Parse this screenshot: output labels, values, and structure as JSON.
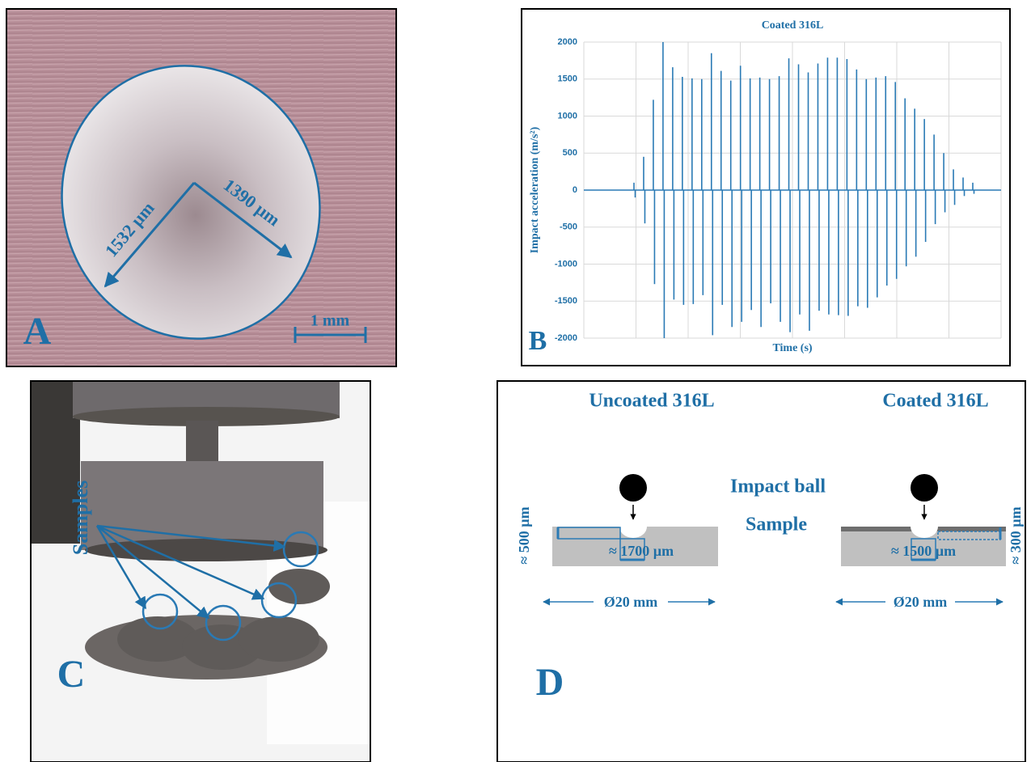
{
  "panel_a": {
    "label": "A",
    "dimensions": [
      "1532 µm",
      "1390 µm"
    ],
    "scale_bar": "1 mm"
  },
  "chart_data": {
    "type": "line",
    "panel_label": "B",
    "title": "Coated 316L",
    "x_label": "Time (s)",
    "y_label": "Impact acceleration (m/s²)",
    "ylim": [
      -2000,
      2000
    ],
    "yticks": [
      -2000,
      -1500,
      -1000,
      -500,
      0,
      500,
      1000,
      1500,
      2000
    ],
    "grid": true,
    "series": [
      {
        "color": "#2a7ab5",
        "values": [
          100,
          450,
          1220,
          2000,
          1660,
          1530,
          1510,
          1500,
          1850,
          1610,
          1480,
          1680,
          1510,
          1520,
          1500,
          1540,
          1780,
          1700,
          1590,
          1710,
          1790,
          1790,
          1770,
          1630,
          1500,
          1520,
          1540,
          1460,
          1240,
          1100,
          960,
          750,
          500,
          280,
          170,
          100
        ]
      },
      {
        "color": "#2a7ab5",
        "values": [
          -100,
          -450,
          -1270,
          -2000,
          -1480,
          -1550,
          -1540,
          -1420,
          -1960,
          -1550,
          -1850,
          -1780,
          -1620,
          -1850,
          -1530,
          -1780,
          -1920,
          -1680,
          -1900,
          -1630,
          -1680,
          -1690,
          -1700,
          -1570,
          -1590,
          -1450,
          -1290,
          -1200,
          -1030,
          -900,
          -700,
          -460,
          -300,
          -200,
          -80,
          -50
        ]
      }
    ]
  },
  "panel_c": {
    "label": "C",
    "annotation": "Samples"
  },
  "panel_d": {
    "label": "D",
    "titles": [
      "Uncoated 316L",
      "Coated 316L"
    ],
    "impact_ball": "Impact ball",
    "sample": "Sample",
    "depths": [
      "≈ 500 µm",
      "≈ 300 µm"
    ],
    "widths": [
      "≈ 1700 µm",
      "≈ 1500 µm"
    ],
    "diameters": [
      "Ø20 mm",
      "Ø20 mm"
    ]
  }
}
